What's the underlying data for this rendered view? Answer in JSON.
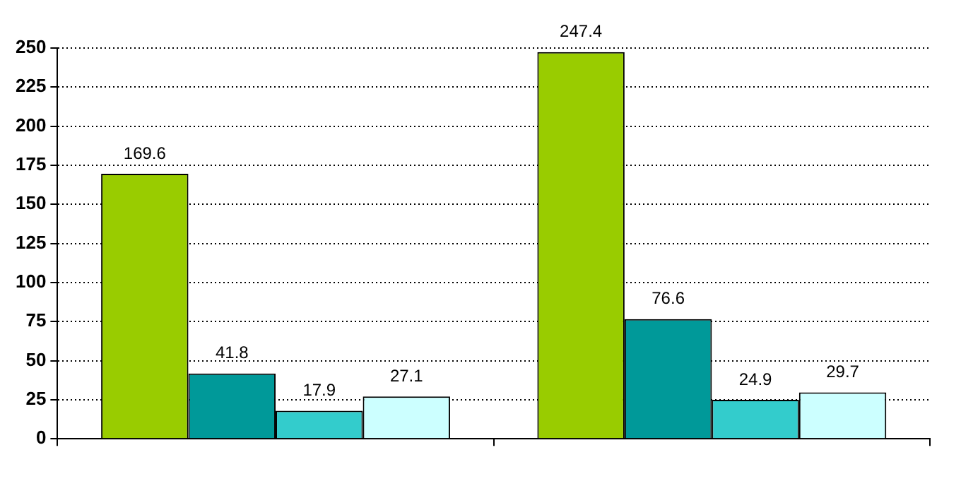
{
  "chart_data": {
    "type": "bar",
    "categories": [
      null,
      null
    ],
    "series": [
      {
        "color": "#99cc00",
        "values": [
          169.6,
          247.4
        ]
      },
      {
        "color": "#009999",
        "values": [
          41.8,
          76.6
        ]
      },
      {
        "color": "#33cccc",
        "values": [
          17.9,
          24.9
        ]
      },
      {
        "color": "#ccffff",
        "values": [
          27.1,
          29.7
        ]
      }
    ],
    "ylim": [
      0,
      250
    ],
    "yticks": [
      0,
      25,
      50,
      75,
      100,
      125,
      150,
      175,
      200,
      225,
      250
    ],
    "grid": "y",
    "data_labels": true,
    "legend": false
  }
}
